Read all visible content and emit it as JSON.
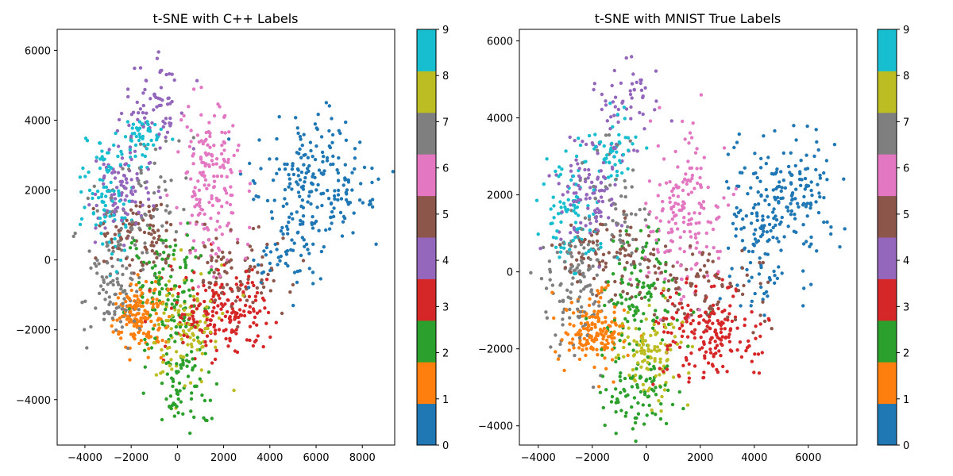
{
  "colormap": [
    "#1f77b4",
    "#ff7f0e",
    "#2ca02c",
    "#d62728",
    "#9467bd",
    "#8c564b",
    "#e377c2",
    "#7f7f7f",
    "#bcbd22",
    "#17becf"
  ],
  "chart_data": [
    {
      "type": "scatter",
      "title": "t-SNE with C++ Labels",
      "xlabel": "",
      "ylabel": "",
      "xlim": [
        -5200,
        9400
      ],
      "ylim": [
        -5300,
        6600
      ],
      "xticks": [
        -4000,
        -2000,
        0,
        2000,
        4000,
        6000,
        8000
      ],
      "xtick_labels": [
        "−4000",
        "−2000",
        "0",
        "2000",
        "4000",
        "6000",
        "8000"
      ],
      "yticks": [
        -4000,
        -2000,
        0,
        2000,
        4000,
        6000
      ],
      "ytick_labels": [
        "−4000",
        "−2000",
        "0",
        "2000",
        "4000",
        "6000"
      ],
      "colorbar": {
        "range": [
          0,
          9
        ],
        "ticks": [
          "0",
          "1",
          "2",
          "3",
          "4",
          "5",
          "6",
          "7",
          "8",
          "9"
        ]
      },
      "grid": false,
      "clusters": [
        {
          "label": 0,
          "cx": 6000,
          "cy": 2200,
          "sx": 1200,
          "sy": 900,
          "n": 200
        },
        {
          "label": 0,
          "cx": 4700,
          "cy": 300,
          "sx": 700,
          "sy": 700,
          "n": 60
        },
        {
          "label": 1,
          "cx": -1600,
          "cy": -1700,
          "sx": 550,
          "sy": 500,
          "n": 150
        },
        {
          "label": 2,
          "cx": 300,
          "cy": -3500,
          "sx": 700,
          "sy": 600,
          "n": 75
        },
        {
          "label": 2,
          "cx": -500,
          "cy": -900,
          "sx": 900,
          "sy": 1000,
          "n": 130
        },
        {
          "label": 3,
          "cx": 1800,
          "cy": -1500,
          "sx": 1000,
          "sy": 600,
          "n": 190
        },
        {
          "label": 4,
          "cx": -2300,
          "cy": 2000,
          "sx": 600,
          "sy": 700,
          "n": 100
        },
        {
          "label": 4,
          "cx": -1000,
          "cy": 4400,
          "sx": 700,
          "sy": 800,
          "n": 70
        },
        {
          "label": 5,
          "cx": -1500,
          "cy": 700,
          "sx": 1000,
          "sy": 500,
          "n": 90
        },
        {
          "label": 5,
          "cx": 2500,
          "cy": -300,
          "sx": 1300,
          "sy": 600,
          "n": 90
        },
        {
          "label": 6,
          "cx": 1400,
          "cy": 2200,
          "sx": 700,
          "sy": 1200,
          "n": 170
        },
        {
          "label": 7,
          "cx": -2800,
          "cy": -600,
          "sx": 600,
          "sy": 1000,
          "n": 110
        },
        {
          "label": 7,
          "cx": -1500,
          "cy": 1800,
          "sx": 800,
          "sy": 900,
          "n": 60
        },
        {
          "label": 8,
          "cx": 400,
          "cy": -2000,
          "sx": 800,
          "sy": 700,
          "n": 110
        },
        {
          "label": 9,
          "cx": -3000,
          "cy": 1600,
          "sx": 600,
          "sy": 900,
          "n": 90
        },
        {
          "label": 9,
          "cx": -1500,
          "cy": 3500,
          "sx": 500,
          "sy": 400,
          "n": 50
        }
      ]
    },
    {
      "type": "scatter",
      "title": "t-SNE with MNIST True Labels",
      "xlabel": "",
      "ylabel": "",
      "xlim": [
        -4700,
        7800
      ],
      "ylim": [
        -4500,
        6300
      ],
      "xticks": [
        -4000,
        -2000,
        0,
        2000,
        4000,
        6000
      ],
      "xtick_labels": [
        "−4000",
        "−2000",
        "0",
        "2000",
        "4000",
        "6000"
      ],
      "yticks": [
        -4000,
        -2000,
        0,
        2000,
        4000,
        6000
      ],
      "ytick_labels": [
        "−4000",
        "−2000",
        "0",
        "2000",
        "4000",
        "6000"
      ],
      "colorbar": {
        "range": [
          0,
          9
        ],
        "ticks": [
          "0",
          "1",
          "2",
          "3",
          "4",
          "5",
          "6",
          "7",
          "8",
          "9"
        ]
      },
      "grid": false,
      "clusters": [
        {
          "label": 0,
          "cx": 5000,
          "cy": 2000,
          "sx": 1000,
          "sy": 800,
          "n": 190
        },
        {
          "label": 0,
          "cx": 4200,
          "cy": 300,
          "sx": 600,
          "sy": 600,
          "n": 60
        },
        {
          "label": 1,
          "cx": -1900,
          "cy": -1500,
          "sx": 550,
          "sy": 500,
          "n": 160
        },
        {
          "label": 2,
          "cx": -400,
          "cy": -3200,
          "sx": 600,
          "sy": 500,
          "n": 80
        },
        {
          "label": 2,
          "cx": -200,
          "cy": -700,
          "sx": 800,
          "sy": 900,
          "n": 120
        },
        {
          "label": 3,
          "cx": 2200,
          "cy": -1600,
          "sx": 1000,
          "sy": 600,
          "n": 190
        },
        {
          "label": 4,
          "cx": -2200,
          "cy": 2000,
          "sx": 600,
          "sy": 700,
          "n": 100
        },
        {
          "label": 4,
          "cx": -800,
          "cy": 4300,
          "sx": 600,
          "sy": 700,
          "n": 60
        },
        {
          "label": 5,
          "cx": -1500,
          "cy": 600,
          "sx": 1000,
          "sy": 500,
          "n": 90
        },
        {
          "label": 5,
          "cx": 2000,
          "cy": -400,
          "sx": 1200,
          "sy": 600,
          "n": 90
        },
        {
          "label": 6,
          "cx": 1500,
          "cy": 1500,
          "sx": 700,
          "sy": 1100,
          "n": 170
        },
        {
          "label": 7,
          "cx": -2700,
          "cy": -400,
          "sx": 600,
          "sy": 900,
          "n": 110
        },
        {
          "label": 7,
          "cx": -1200,
          "cy": 1500,
          "sx": 700,
          "sy": 800,
          "n": 60
        },
        {
          "label": 8,
          "cx": 200,
          "cy": -2000,
          "sx": 700,
          "sy": 600,
          "n": 110
        },
        {
          "label": 9,
          "cx": -2800,
          "cy": 1500,
          "sx": 600,
          "sy": 800,
          "n": 90
        },
        {
          "label": 9,
          "cx": -1300,
          "cy": 3200,
          "sx": 500,
          "sy": 500,
          "n": 50
        }
      ]
    }
  ]
}
